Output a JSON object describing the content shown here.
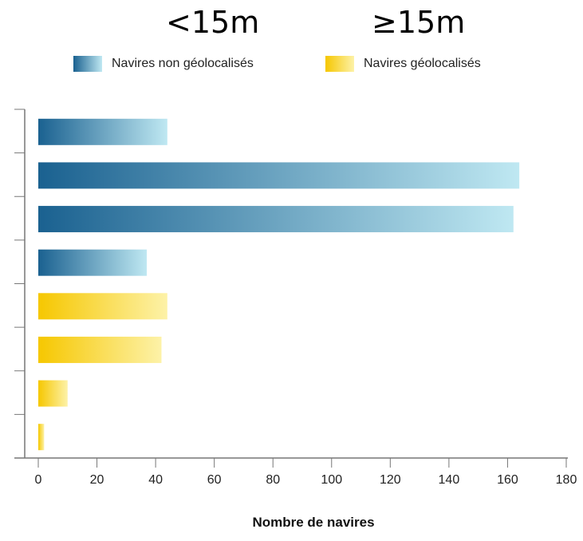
{
  "header": {
    "left_label": "<15m",
    "right_label": "≥15m"
  },
  "legend": [
    {
      "label": "Navires non géolocalisés",
      "color_dark": "#1a6190",
      "color_light": "#bfe8f2"
    },
    {
      "label": "Navires géolocalisés",
      "color_dark": "#f6c700",
      "color_light": "#fdf2a8"
    }
  ],
  "chart_data": {
    "type": "bar",
    "orientation": "horizontal",
    "xlabel": "Nombre de navires",
    "xlim": [
      0,
      180
    ],
    "xticks": [
      0,
      20,
      40,
      60,
      80,
      100,
      120,
      140,
      160,
      180
    ],
    "bars": [
      {
        "value": 44,
        "series": 0
      },
      {
        "value": 164,
        "series": 0
      },
      {
        "value": 162,
        "series": 0
      },
      {
        "value": 37,
        "series": 0
      },
      {
        "value": 44,
        "series": 1
      },
      {
        "value": 42,
        "series": 1
      },
      {
        "value": 10,
        "series": 1
      },
      {
        "value": 2,
        "series": 1
      }
    ],
    "grid": false
  }
}
